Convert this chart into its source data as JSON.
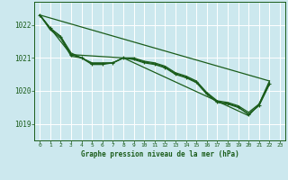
{
  "title": "Graphe pression niveau de la mer (hPa)",
  "background_color": "#cce8ee",
  "plot_bg_color": "#cce8ee",
  "grid_color": "#aacccc",
  "line_color": "#1a5c1a",
  "x_ticks": [
    0,
    1,
    2,
    3,
    4,
    5,
    6,
    7,
    8,
    9,
    10,
    11,
    12,
    13,
    14,
    15,
    16,
    17,
    18,
    19,
    20,
    21,
    22,
    23
  ],
  "y_ticks": [
    1019,
    1020,
    1021,
    1022
  ],
  "ylim": [
    1018.5,
    1022.7
  ],
  "xlim": [
    -0.5,
    23.5
  ],
  "envelope_line": {
    "x": [
      0,
      22
    ],
    "y": [
      1022.3,
      1020.3
    ]
  },
  "line1": [
    1022.3,
    1021.9,
    1021.65,
    1021.15,
    1021.0,
    1020.85,
    1020.85,
    1020.85,
    1021.0,
    1021.0,
    1020.9,
    1020.85,
    1020.75,
    1020.55,
    1020.45,
    1020.3,
    1019.95,
    1019.7,
    1019.65,
    1019.55,
    1019.35,
    1019.6,
    1020.25,
    null
  ],
  "line2": [
    1022.3,
    1021.85,
    1021.6,
    1021.05,
    1021.0,
    1020.8,
    1020.8,
    1020.85,
    1021.0,
    1020.95,
    1020.85,
    1020.8,
    1020.7,
    1020.5,
    1020.4,
    1020.25,
    1019.9,
    1019.65,
    1019.6,
    1019.5,
    1019.3,
    1019.55,
    1020.2,
    null
  ],
  "line3_sparse": {
    "x": [
      0,
      3,
      8,
      20,
      21,
      22
    ],
    "y": [
      1022.3,
      1021.1,
      1021.0,
      1019.25,
      1019.6,
      1020.3
    ]
  },
  "line_detail_x": [
    0,
    1,
    2,
    3,
    4,
    5,
    6,
    7,
    8,
    9,
    10,
    11,
    12,
    13,
    14,
    15,
    16,
    17,
    18,
    19,
    20,
    21,
    22
  ],
  "line_detail_y": [
    1022.3,
    1021.9,
    1021.65,
    1021.1,
    1021.0,
    1020.83,
    1020.83,
    1020.85,
    1021.0,
    1020.97,
    1020.88,
    1020.82,
    1020.72,
    1020.52,
    1020.42,
    1020.27,
    1019.92,
    1019.67,
    1019.62,
    1019.52,
    1019.28,
    1019.57,
    1020.22
  ]
}
